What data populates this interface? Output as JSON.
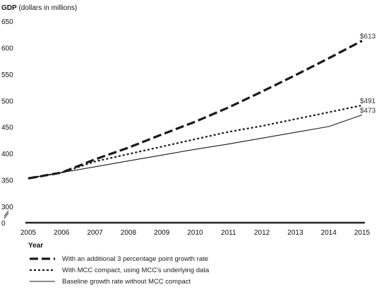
{
  "chart_data": {
    "type": "line",
    "title_bold": "GDP",
    "title_rest": " (dollars in millions)",
    "xlabel": "Year",
    "ylabel": "",
    "x": [
      2005,
      2006,
      2007,
      2008,
      2009,
      2010,
      2011,
      2012,
      2013,
      2014,
      2015
    ],
    "y_ticks": [
      0,
      300,
      350,
      400,
      450,
      500,
      550,
      600,
      650
    ],
    "ylim": [
      300,
      650
    ],
    "axis_break": true,
    "grid": false,
    "legend_position": "bottom",
    "series": [
      {
        "name": "With an additional 3 percentage point growth rate",
        "style": "dashed-heavy",
        "values": [
          353,
          364,
          389,
          411,
          436,
          460,
          487,
          517,
          548,
          580,
          613
        ],
        "end_label": "$613"
      },
      {
        "name": "With MCC compact, using MCC's underlying data",
        "style": "dotted",
        "values": [
          353,
          364,
          385,
          399,
          413,
          427,
          441,
          452,
          465,
          478,
          491
        ],
        "end_label": "$491"
      },
      {
        "name": "Baseline growth rate without MCC compact",
        "style": "solid",
        "values": [
          353,
          364,
          375,
          386,
          397,
          408,
          418,
          429,
          440,
          451,
          473
        ],
        "end_label": "$473"
      }
    ]
  }
}
